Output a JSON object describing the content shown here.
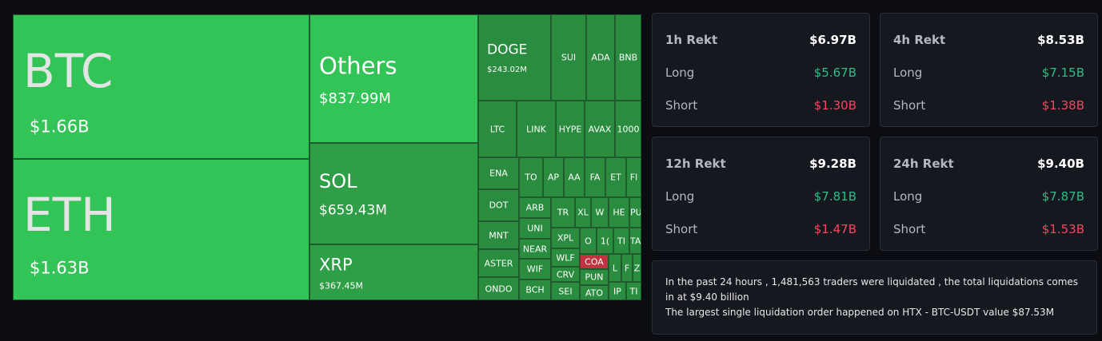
{
  "treemap": {
    "tiles": [
      {
        "label": "BTC",
        "value": "$1.66B"
      },
      {
        "label": "ETH",
        "value": "$1.63B"
      },
      {
        "label": "Others",
        "value": "$837.99M"
      },
      {
        "label": "SOL",
        "value": "$659.43M"
      },
      {
        "label": "XRP",
        "value": "$367.45M"
      },
      {
        "label": "DOGE",
        "value": "$243.02M"
      },
      {
        "label": "SUI"
      },
      {
        "label": "ADA"
      },
      {
        "label": "BNB"
      },
      {
        "label": "LTC"
      },
      {
        "label": "LINK"
      },
      {
        "label": "HYPE"
      },
      {
        "label": "AVAX"
      },
      {
        "label": "1000"
      },
      {
        "label": "ENA"
      },
      {
        "label": "DOT"
      },
      {
        "label": "MNT"
      },
      {
        "label": "ASTER"
      },
      {
        "label": "ONDO"
      },
      {
        "label": "TO"
      },
      {
        "label": "AP"
      },
      {
        "label": "AA"
      },
      {
        "label": "FA"
      },
      {
        "label": "ET"
      },
      {
        "label": "FI"
      },
      {
        "label": "ARB"
      },
      {
        "label": "UNI"
      },
      {
        "label": "NEAR"
      },
      {
        "label": "WIF"
      },
      {
        "label": "BCH"
      },
      {
        "label": "TR"
      },
      {
        "label": "XL"
      },
      {
        "label": "W"
      },
      {
        "label": "HE"
      },
      {
        "label": "PU"
      },
      {
        "label": "XPL"
      },
      {
        "label": "O"
      },
      {
        "label": "1("
      },
      {
        "label": "TI"
      },
      {
        "label": "TA"
      },
      {
        "label": "WLF"
      },
      {
        "label": "COA"
      },
      {
        "label": "CRV"
      },
      {
        "label": "PUN"
      },
      {
        "label": "L"
      },
      {
        "label": "F"
      },
      {
        "label": "Z"
      },
      {
        "label": "SEI"
      },
      {
        "label": "ATO"
      },
      {
        "label": "IP"
      },
      {
        "label": "TI"
      }
    ]
  },
  "cards": [
    {
      "title": "1h Rekt",
      "total": "$6.97B",
      "rows": [
        {
          "label": "Long",
          "value": "$5.67B"
        },
        {
          "label": "Short",
          "value": "$1.30B"
        }
      ]
    },
    {
      "title": "4h Rekt",
      "total": "$8.53B",
      "rows": [
        {
          "label": "Long",
          "value": "$7.15B"
        },
        {
          "label": "Short",
          "value": "$1.38B"
        }
      ]
    },
    {
      "title": "12h Rekt",
      "total": "$9.28B",
      "rows": [
        {
          "label": "Long",
          "value": "$7.81B"
        },
        {
          "label": "Short",
          "value": "$1.47B"
        }
      ]
    },
    {
      "title": "24h Rekt",
      "total": "$9.40B",
      "rows": [
        {
          "label": "Long",
          "value": "$7.87B"
        },
        {
          "label": "Short",
          "value": "$1.53B"
        }
      ]
    }
  ],
  "summary": {
    "lines": [
      "In the past 24 hours , 1,481,563 traders were liquidated , the total liquidations comes in at $9.40 billion",
      "The largest single liquidation order happened on HTX - BTC-USDT value $87.53M"
    ]
  }
}
